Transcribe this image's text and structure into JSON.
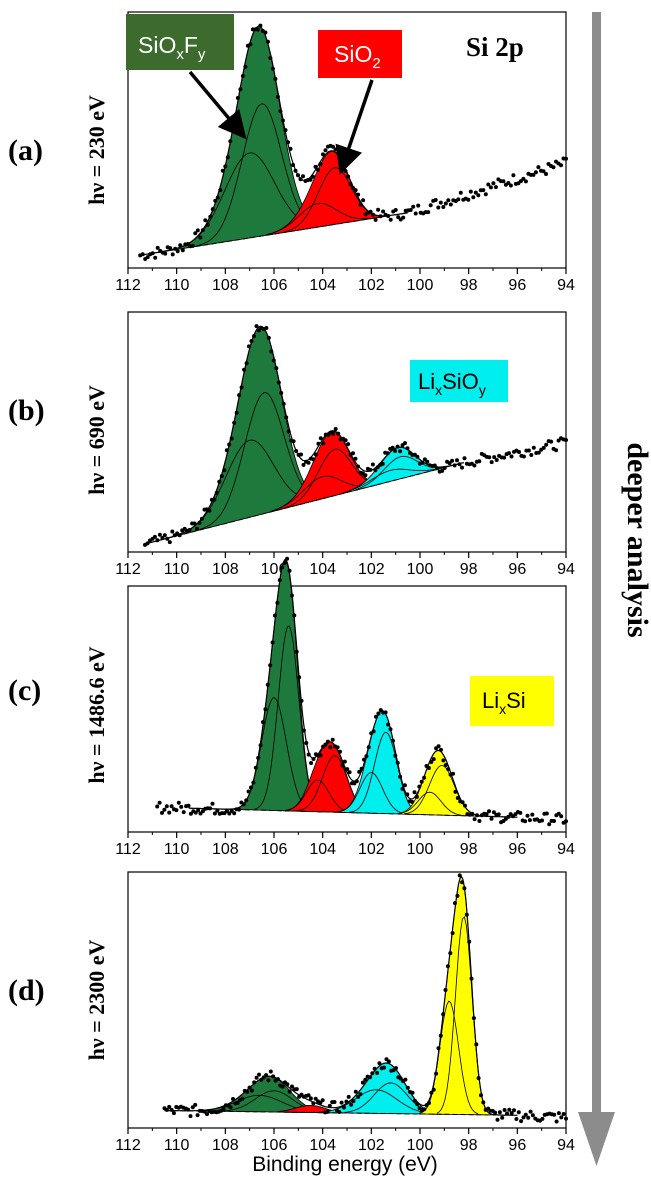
{
  "figure": {
    "element_label": "Si 2p",
    "side_annotation": "deeper analysis",
    "xlabel": "Binding energy (eV)",
    "xlim": [
      112,
      94
    ],
    "xticks": [
      112,
      110,
      108,
      106,
      104,
      102,
      100,
      98,
      96,
      94
    ],
    "colors": {
      "SiOxFy": "#1e7a3c",
      "SiO2": "#ff0000",
      "LixSiOy": "#00eeee",
      "LixSi": "#ffff00",
      "SiOxFy_label_bg": "#3d6b2e",
      "arrow": "#8c8c8c"
    }
  },
  "labels": {
    "SiOxFy": {
      "base": "SiO",
      "sub1": "x",
      "mid": "F",
      "sub2": "y"
    },
    "SiO2": {
      "base": "SiO",
      "sub1": "2"
    },
    "LixSiOy": {
      "base": "Li",
      "sub1": "x",
      "mid": "SiO",
      "sub2": "y"
    },
    "LixSi": {
      "base": "Li",
      "sub1": "x",
      "mid": "Si"
    }
  },
  "chart_data": [
    {
      "type": "line",
      "panel": "(a)",
      "energy_label": "hν = 230 eV",
      "xlim": [
        112,
        94
      ],
      "data_range": [
        111.5,
        94.0
      ],
      "fit_range": [
        111.5,
        100.5
      ],
      "background": {
        "from": [
          111.5,
          0.02
        ],
        "to": [
          100.5,
          0.2
        ]
      },
      "signal_after_fit": {
        "from": [
          100.5,
          0.2
        ],
        "to": [
          94.0,
          0.41
        ]
      },
      "series": [
        {
          "name": "SiOxFy",
          "components": [
            {
              "center": 107.0,
              "height": 0.36,
              "fwhm": 2.4
            },
            {
              "center": 106.5,
              "height": 0.56,
              "fwhm": 1.9
            }
          ]
        },
        {
          "name": "SiO2",
          "components": [
            {
              "center": 104.2,
              "height": 0.1,
              "fwhm": 1.8
            },
            {
              "center": 103.5,
              "height": 0.24,
              "fwhm": 1.6
            }
          ]
        }
      ],
      "labels_shown": [
        "SiOxFy",
        "SiO2"
      ]
    },
    {
      "type": "line",
      "panel": "(b)",
      "energy_label": "hν = 690 eV",
      "xlim": [
        112,
        94
      ],
      "data_range": [
        111.3,
        94.0
      ],
      "fit_range": [
        111.3,
        98.2
      ],
      "background": {
        "from": [
          111.3,
          0.0
        ],
        "to": [
          98.2,
          0.37
        ]
      },
      "signal_after_fit": {
        "from": [
          98.2,
          0.37
        ],
        "to": [
          94.0,
          0.46
        ]
      },
      "series": [
        {
          "name": "SiOxFy",
          "components": [
            {
              "center": 107.0,
              "height": 0.35,
              "fwhm": 2.3
            },
            {
              "center": 106.4,
              "height": 0.55,
              "fwhm": 1.9
            }
          ]
        },
        {
          "name": "SiO2",
          "components": [
            {
              "center": 104.0,
              "height": 0.1,
              "fwhm": 1.8
            },
            {
              "center": 103.5,
              "height": 0.21,
              "fwhm": 1.6
            }
          ]
        },
        {
          "name": "LixSiOy",
          "components": [
            {
              "center": 101.2,
              "height": 0.05,
              "fwhm": 1.8
            },
            {
              "center": 100.8,
              "height": 0.1,
              "fwhm": 1.6
            }
          ]
        }
      ],
      "labels_shown": [
        "LixSiOy"
      ]
    },
    {
      "type": "line",
      "panel": "(c)",
      "energy_label": "hν = 1486.6 eV",
      "xlim": [
        112,
        94
      ],
      "data_range": [
        110.8,
        94.0
      ],
      "fit_range": [
        109.5,
        96.0
      ],
      "background": {
        "from": [
          109.5,
          0.07
        ],
        "to": [
          96.0,
          0.03
        ]
      },
      "signal_after_fit": {
        "from": [
          96.0,
          0.03
        ],
        "to": [
          94.0,
          0.02
        ]
      },
      "series": [
        {
          "name": "SiOxFy",
          "components": [
            {
              "center": 106.0,
              "height": 0.5,
              "fwhm": 1.2
            },
            {
              "center": 105.4,
              "height": 0.82,
              "fwhm": 1.0
            }
          ]
        },
        {
          "name": "SiO2",
          "components": [
            {
              "center": 104.2,
              "height": 0.14,
              "fwhm": 1.1
            },
            {
              "center": 103.5,
              "height": 0.25,
              "fwhm": 1.2
            }
          ]
        },
        {
          "name": "LixSiOy",
          "components": [
            {
              "center": 102.0,
              "height": 0.18,
              "fwhm": 1.1
            },
            {
              "center": 101.4,
              "height": 0.36,
              "fwhm": 1.1
            }
          ]
        },
        {
          "name": "LixSi",
          "components": [
            {
              "center": 99.6,
              "height": 0.1,
              "fwhm": 1.1
            },
            {
              "center": 99.1,
              "height": 0.22,
              "fwhm": 1.2
            }
          ]
        }
      ],
      "labels_shown": [
        "LixSi"
      ]
    },
    {
      "type": "line",
      "panel": "(d)",
      "energy_label": "hν = 2300 eV",
      "xlim": [
        112,
        94
      ],
      "data_range": [
        110.5,
        94.0
      ],
      "fit_range": [
        110.5,
        96.0
      ],
      "background": {
        "from": [
          110.5,
          0.04
        ],
        "to": [
          96.0,
          0.02
        ]
      },
      "signal_after_fit": {
        "from": [
          96.0,
          0.02
        ],
        "to": [
          94.0,
          0.01
        ]
      },
      "series": [
        {
          "name": "SiOxFy",
          "components": [
            {
              "center": 106.6,
              "height": 0.07,
              "fwhm": 2.2
            },
            {
              "center": 106.0,
              "height": 0.09,
              "fwhm": 1.8
            }
          ]
        },
        {
          "name": "SiO2",
          "components": [
            {
              "center": 104.5,
              "height": 0.03,
              "fwhm": 1.4
            }
          ]
        },
        {
          "name": "LixSiOy",
          "components": [
            {
              "center": 101.8,
              "height": 0.1,
              "fwhm": 2.0
            },
            {
              "center": 101.2,
              "height": 0.13,
              "fwhm": 1.6
            }
          ]
        },
        {
          "name": "LixSi",
          "components": [
            {
              "center": 98.8,
              "height": 0.48,
              "fwhm": 0.9
            },
            {
              "center": 98.2,
              "height": 0.84,
              "fwhm": 0.8
            }
          ]
        }
      ],
      "labels_shown": []
    }
  ]
}
